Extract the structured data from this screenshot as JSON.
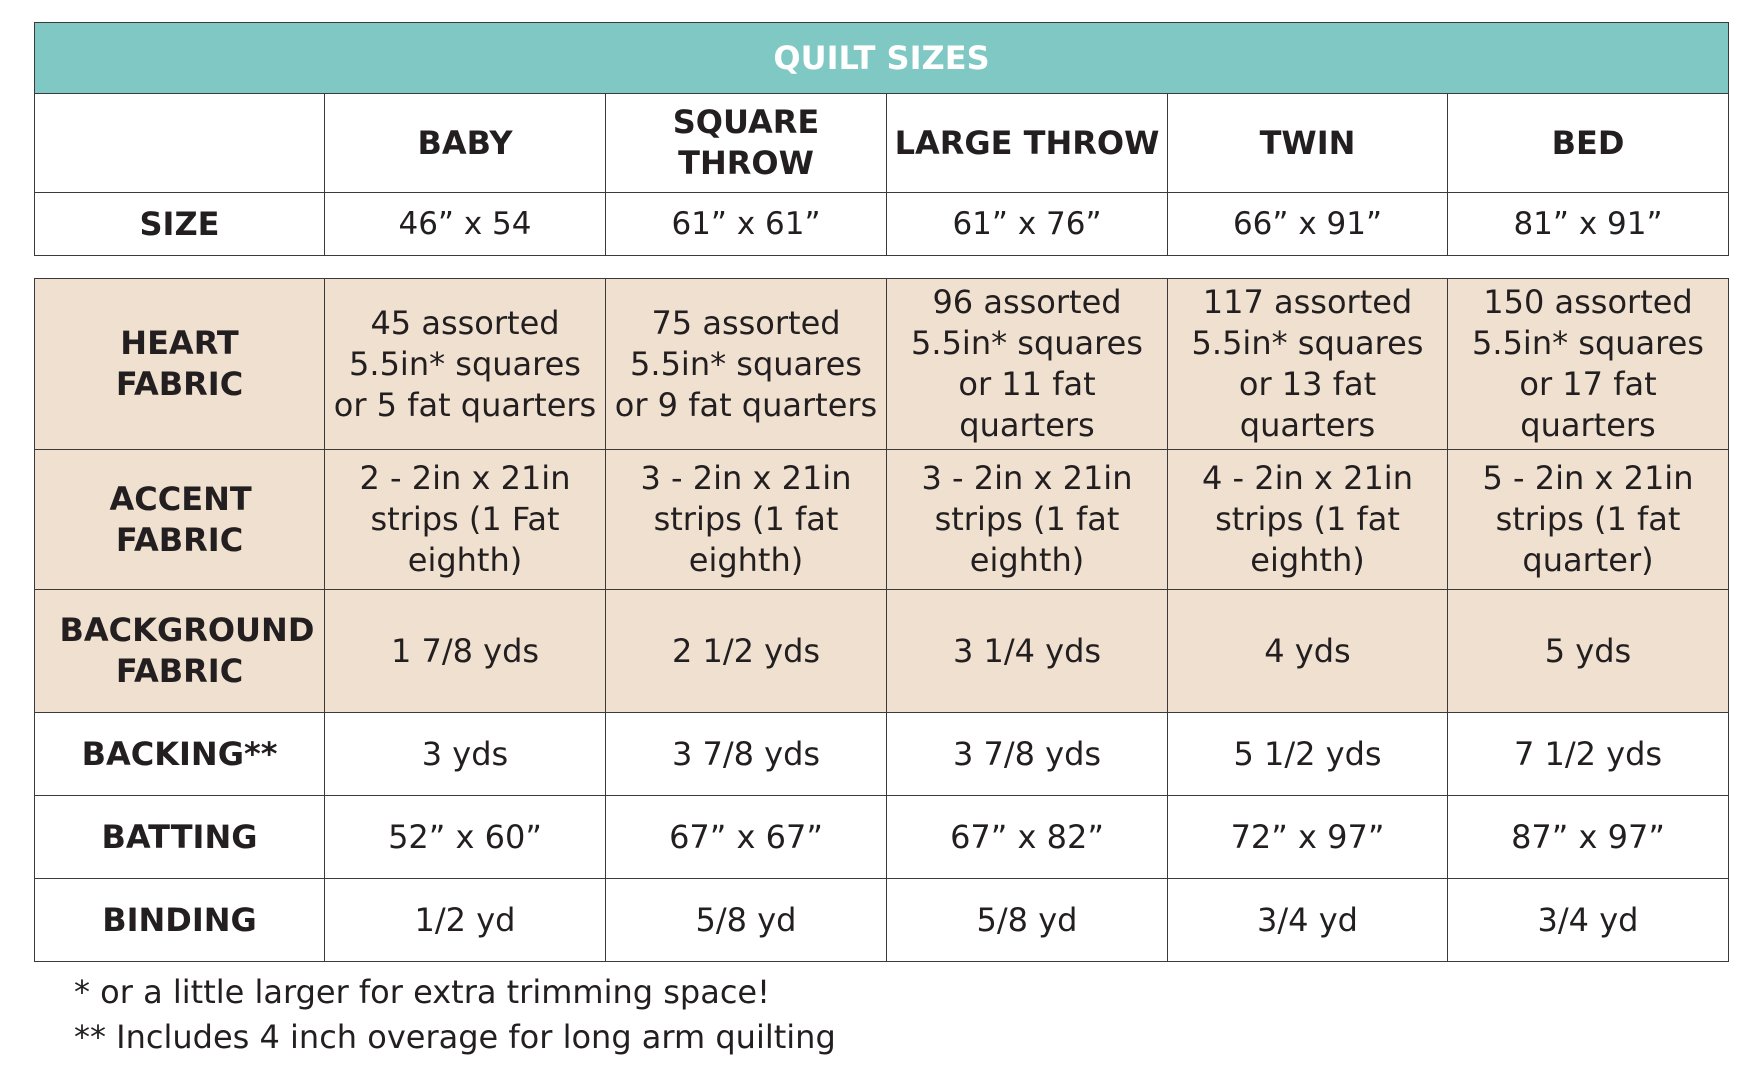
{
  "title": "QUILT SIZES",
  "columns": [
    "BABY",
    "SQUARE THROW",
    "LARGE THROW",
    "TWIN",
    "BED"
  ],
  "size_row": {
    "label": "SIZE",
    "values": [
      "46” x 54",
      "61” x 61”",
      "61” x 76”",
      "66” x 91”",
      "81” x 91”"
    ]
  },
  "rows": [
    {
      "label": "HEART FABRIC",
      "values": [
        "45 assorted 5.5in* squares or 5 fat quarters",
        "75 assorted 5.5in* squares or 9 fat quarters",
        "96 assorted 5.5in* squares or 11 fat quarters",
        "117 assorted 5.5in* squares or 13 fat quarters",
        "150 assorted 5.5in* squares or 17 fat quarters"
      ]
    },
    {
      "label": "ACCENT FABRIC",
      "values": [
        "2 - 2in x 21in strips (1 Fat eighth)",
        "3 - 2in x 21in strips (1 fat eighth)",
        "3 - 2in x 21in strips (1 fat eighth)",
        "4 - 2in x 21in strips (1 fat eighth)",
        "5 - 2in x 21in strips (1 fat quarter)"
      ]
    },
    {
      "label": "BACKGROUND FABRIC",
      "values": [
        "1 7/8 yds",
        "2 1/2 yds",
        "3 1/4 yds",
        "4 yds",
        "5 yds"
      ]
    },
    {
      "label": "BACKING**",
      "values": [
        "3 yds",
        "3 7/8 yds",
        "3 7/8 yds",
        "5 1/2 yds",
        "7 1/2 yds"
      ]
    },
    {
      "label": "BATTING",
      "values": [
        "52” x 60”",
        "67” x 67”",
        "67” x 82”",
        "72” x 97”",
        "87” x 97”"
      ]
    },
    {
      "label": "BINDING",
      "values": [
        "1/2 yd",
        "5/8 yd",
        "5/8 yd",
        "3/4 yd",
        "3/4 yd"
      ]
    }
  ],
  "footnotes": [
    "* or a little larger for extra trimming space!",
    "** Includes 4 inch overage for long arm quilting"
  ],
  "colors": {
    "header_teal": "#7fc8c4",
    "tan_fill": "#efe0d0",
    "border": "#3a3a3a"
  }
}
